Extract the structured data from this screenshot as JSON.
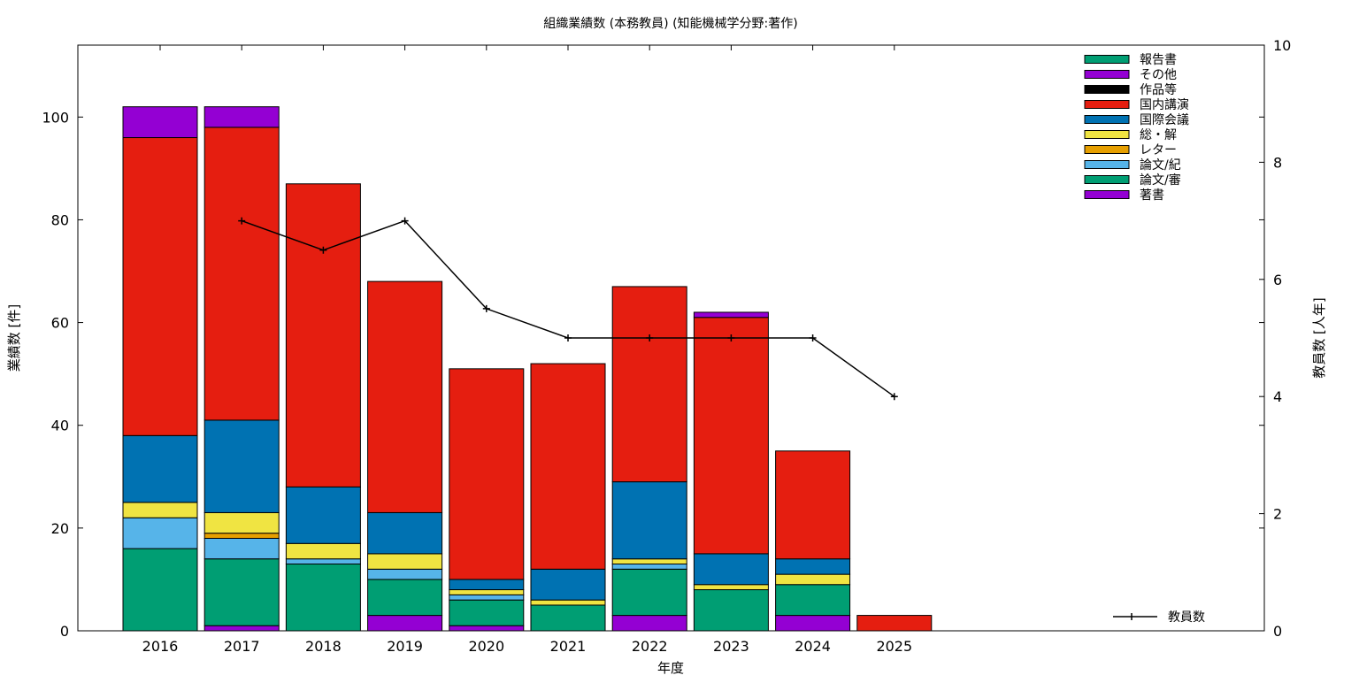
{
  "chart_data": {
    "type": "bar",
    "stacked": true,
    "title": "組織業績数 (本務教員) (知能機械学分野:著作)",
    "xlabel": "年度",
    "ylabel": "業績数 [件]",
    "y2label": "教員数 [人年]",
    "categories": [
      "2016",
      "2017",
      "2018",
      "2019",
      "2020",
      "2021",
      "2022",
      "2023",
      "2024",
      "2025"
    ],
    "ylim": [
      0,
      114
    ],
    "y2lim": [
      0,
      10
    ],
    "yticks": [
      0,
      20,
      40,
      60,
      80,
      100
    ],
    "y2ticks": [
      0,
      2,
      4,
      6,
      8,
      10
    ],
    "legend_position": "top-right",
    "series": [
      {
        "name": "著書",
        "color": "#9400d3",
        "values": [
          0,
          1,
          0,
          3,
          1,
          0,
          3,
          0,
          3,
          0
        ]
      },
      {
        "name": "論文/審",
        "color": "#009e73",
        "values": [
          16,
          13,
          13,
          7,
          5,
          5,
          9,
          8,
          6,
          0
        ]
      },
      {
        "name": "論文/紀",
        "color": "#56b4e9",
        "values": [
          6,
          4,
          1,
          2,
          1,
          0,
          1,
          0,
          0,
          0
        ]
      },
      {
        "name": "レター",
        "color": "#e69f00",
        "values": [
          0,
          1,
          0,
          0,
          0,
          0,
          0,
          0,
          0,
          0
        ]
      },
      {
        "name": "総・解",
        "color": "#f0e442",
        "values": [
          3,
          4,
          3,
          3,
          1,
          1,
          1,
          1,
          2,
          0
        ]
      },
      {
        "name": "国際会議",
        "color": "#0072b2",
        "values": [
          13,
          18,
          11,
          8,
          2,
          6,
          15,
          6,
          3,
          0
        ]
      },
      {
        "name": "国内講演",
        "color": "#e51e10",
        "values": [
          58,
          57,
          59,
          45,
          41,
          40,
          38,
          46,
          21,
          3
        ]
      },
      {
        "name": "作品等",
        "color": "#000000",
        "values": [
          0,
          0,
          0,
          0,
          0,
          0,
          0,
          0,
          0,
          0
        ]
      },
      {
        "name": "その他",
        "color": "#9400d3",
        "values": [
          6,
          4,
          0,
          0,
          0,
          0,
          0,
          1,
          0,
          0
        ]
      },
      {
        "name": "報告書",
        "color": "#009e73",
        "values": [
          0,
          0,
          0,
          0,
          0,
          0,
          0,
          0,
          0,
          0
        ]
      }
    ],
    "line_series": {
      "name": "教員数",
      "axis": "y2",
      "color": "#000000",
      "x": [
        "2017",
        "2018",
        "2019",
        "2020",
        "2021",
        "2022",
        "2023",
        "2024",
        "2025"
      ],
      "values": [
        7,
        6.5,
        7,
        5.5,
        5,
        5,
        5,
        5,
        4
      ]
    }
  }
}
